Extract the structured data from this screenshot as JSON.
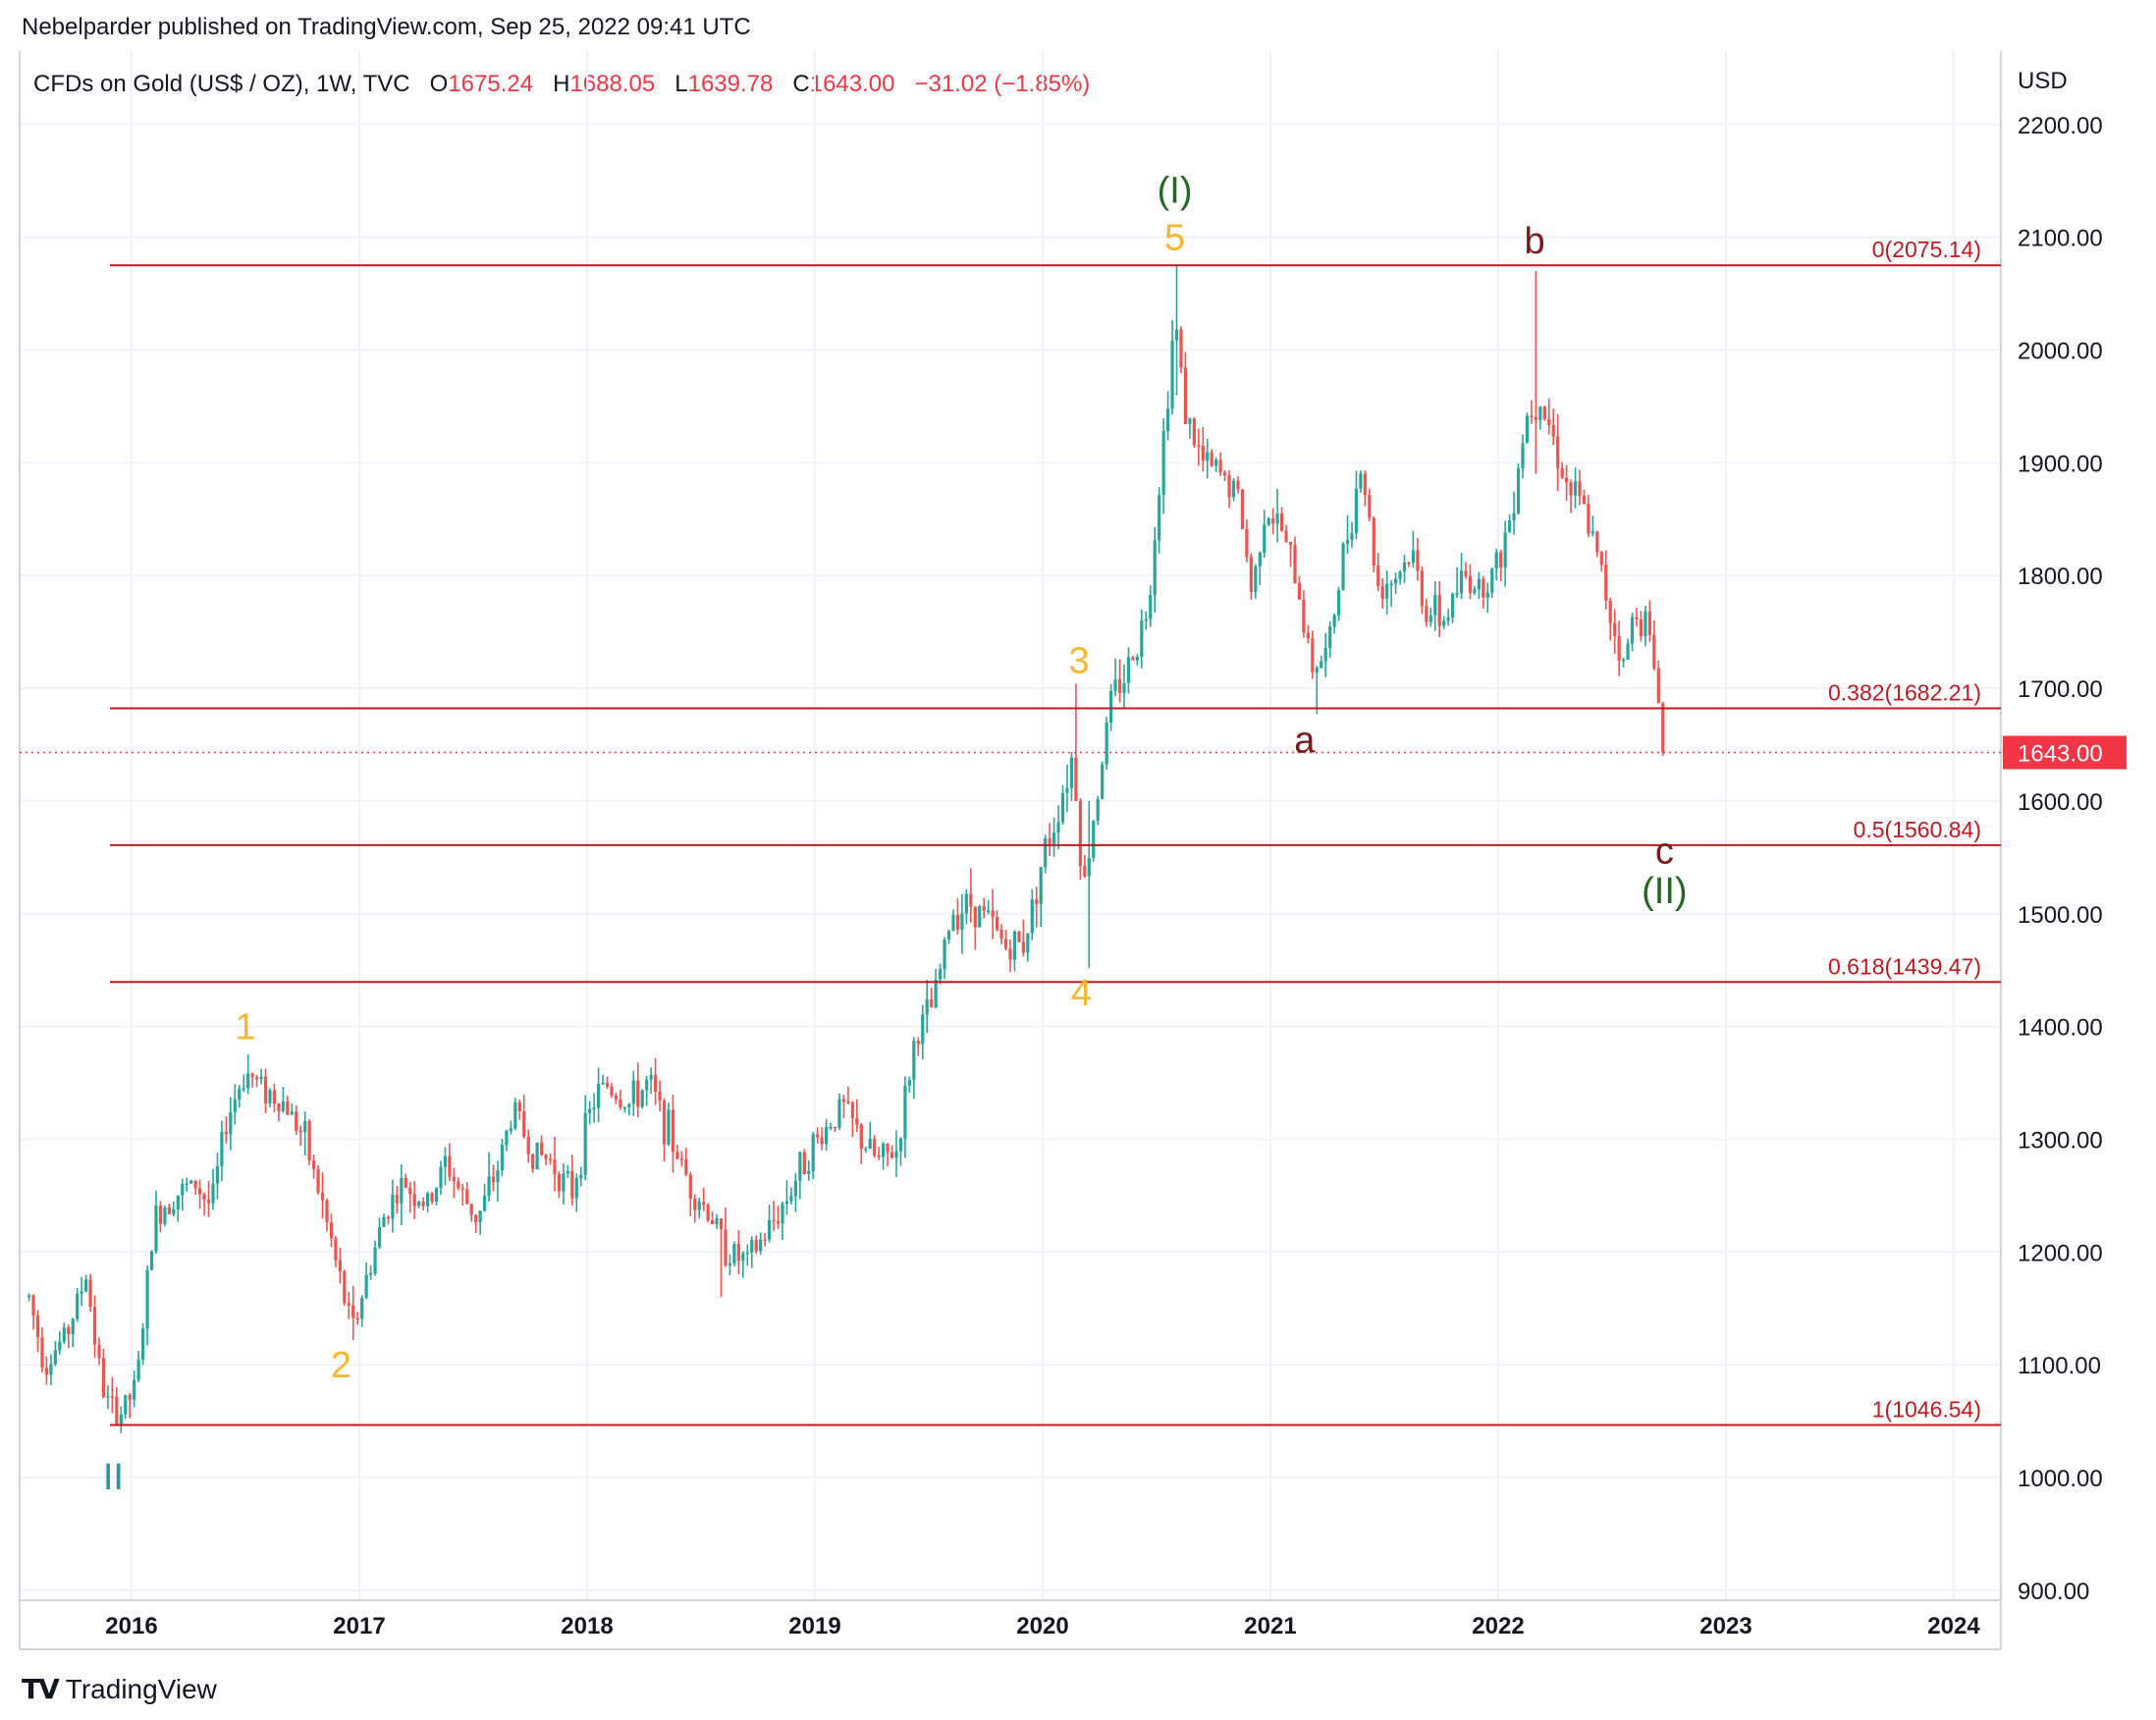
{
  "header": "Nebelparder published on TradingView.com, Sep 25, 2022 09:41 UTC",
  "legend": {
    "symbol": "CFDs on Gold (US$ / OZ), 1W, TVC",
    "o_label": "O",
    "o": "1675.24",
    "h_label": "H",
    "h": "1688.05",
    "l_label": "L",
    "l": "1639.78",
    "c_label": "C",
    "c": "1643.00",
    "change": "−31.02 (−1.85%)"
  },
  "brand": "TradingView",
  "colors": {
    "up": "#26a69a",
    "down": "#ef5350",
    "fib": "#c2181f",
    "wave_minor": "#f7b731",
    "wave_primary": "#1e6b1e",
    "wave_corrective": "#7b1a1a",
    "wave_cycle": "#2596a8",
    "grid": "#f0f3fa",
    "price_tag": "#f23645"
  },
  "chart_data": {
    "type": "candlestick",
    "title": "CFDs on Gold (US$ / OZ), 1W, TVC",
    "currency": "USD",
    "x_range": [
      2015.55,
      2024.25
    ],
    "ylim": [
      900,
      2230
    ],
    "y_ticks": [
      "2200.00",
      "2100.00",
      "2000.00",
      "1900.00",
      "1800.00",
      "1700.00",
      "1600.00",
      "1500.00",
      "1400.00",
      "1300.00",
      "1200.00",
      "1100.00",
      "1000.00",
      "900.00"
    ],
    "x_ticks": [
      "2016",
      "2017",
      "2018",
      "2019",
      "2020",
      "2021",
      "2022",
      "2023",
      "2024"
    ],
    "last_price": "1643.00",
    "fib_levels": [
      {
        "label": "0(2075.14)",
        "value": 2075.14
      },
      {
        "label": "0.382(1682.21)",
        "value": 1682.21
      },
      {
        "label": "0.5(1560.84)",
        "value": 1560.84
      },
      {
        "label": "0.618(1439.47)",
        "value": 1439.47
      },
      {
        "label": "1(1046.54)",
        "value": 1046.54
      }
    ],
    "price_path": [
      [
        2015.55,
        1160
      ],
      [
        2015.62,
        1100
      ],
      [
        2015.72,
        1130
      ],
      [
        2015.8,
        1180
      ],
      [
        2015.87,
        1080
      ],
      [
        2015.93,
        1050
      ],
      [
        2016.02,
        1080
      ],
      [
        2016.1,
        1230
      ],
      [
        2016.18,
        1250
      ],
      [
        2016.28,
        1260
      ],
      [
        2016.35,
        1240
      ],
      [
        2016.42,
        1320
      ],
      [
        2016.5,
        1360
      ],
      [
        2016.58,
        1345
      ],
      [
        2016.68,
        1330
      ],
      [
        2016.76,
        1300
      ],
      [
        2016.84,
        1240
      ],
      [
        2016.92,
        1170
      ],
      [
        2016.97,
        1130
      ],
      [
        2017.05,
        1190
      ],
      [
        2017.12,
        1240
      ],
      [
        2017.2,
        1260
      ],
      [
        2017.3,
        1240
      ],
      [
        2017.38,
        1280
      ],
      [
        2017.45,
        1250
      ],
      [
        2017.52,
        1230
      ],
      [
        2017.6,
        1270
      ],
      [
        2017.68,
        1330
      ],
      [
        2017.75,
        1290
      ],
      [
        2017.85,
        1280
      ],
      [
        2017.93,
        1250
      ],
      [
        2018.02,
        1330
      ],
      [
        2018.08,
        1350
      ],
      [
        2018.18,
        1330
      ],
      [
        2018.27,
        1350
      ],
      [
        2018.35,
        1310
      ],
      [
        2018.45,
        1260
      ],
      [
        2018.55,
        1230
      ],
      [
        2018.62,
        1200
      ],
      [
        2018.7,
        1190
      ],
      [
        2018.8,
        1220
      ],
      [
        2018.88,
        1250
      ],
      [
        2018.96,
        1285
      ],
      [
        2019.05,
        1310
      ],
      [
        2019.12,
        1330
      ],
      [
        2019.2,
        1300
      ],
      [
        2019.28,
        1280
      ],
      [
        2019.36,
        1290
      ],
      [
        2019.44,
        1390
      ],
      [
        2019.52,
        1420
      ],
      [
        2019.6,
        1500
      ],
      [
        2019.68,
        1510
      ],
      [
        2019.76,
        1495
      ],
      [
        2019.84,
        1470
      ],
      [
        2019.92,
        1475
      ],
      [
        2020.0,
        1550
      ],
      [
        2020.05,
        1580
      ],
      [
        2020.13,
        1640
      ],
      [
        2020.18,
        1520
      ],
      [
        2020.22,
        1580
      ],
      [
        2020.3,
        1690
      ],
      [
        2020.38,
        1720
      ],
      [
        2020.46,
        1770
      ],
      [
        2020.52,
        1900
      ],
      [
        2020.58,
        2030
      ],
      [
        2020.63,
        1940
      ],
      [
        2020.7,
        1900
      ],
      [
        2020.78,
        1890
      ],
      [
        2020.86,
        1870
      ],
      [
        2020.92,
        1780
      ],
      [
        2020.97,
        1860
      ],
      [
        2021.05,
        1840
      ],
      [
        2021.12,
        1790
      ],
      [
        2021.18,
        1720
      ],
      [
        2021.25,
        1730
      ],
      [
        2021.33,
        1830
      ],
      [
        2021.4,
        1900
      ],
      [
        2021.47,
        1790
      ],
      [
        2021.55,
        1800
      ],
      [
        2021.62,
        1820
      ],
      [
        2021.68,
        1770
      ],
      [
        2021.76,
        1760
      ],
      [
        2021.85,
        1800
      ],
      [
        2021.92,
        1790
      ],
      [
        2022.0,
        1810
      ],
      [
        2022.05,
        1850
      ],
      [
        2022.12,
        1940
      ],
      [
        2022.18,
        1960
      ],
      [
        2022.23,
        1930
      ],
      [
        2022.3,
        1880
      ],
      [
        2022.37,
        1860
      ],
      [
        2022.43,
        1820
      ],
      [
        2022.5,
        1760
      ],
      [
        2022.55,
        1720
      ],
      [
        2022.6,
        1770
      ],
      [
        2022.65,
        1760
      ],
      [
        2022.7,
        1700
      ],
      [
        2022.73,
        1643
      ]
    ],
    "key_candles": [
      {
        "x": 2015.94,
        "low": 1046.54,
        "high": 1080
      },
      {
        "x": 2016.51,
        "low": 1340,
        "high": 1375
      },
      {
        "x": 2016.97,
        "low": 1122,
        "high": 1170
      },
      {
        "x": 2018.58,
        "low": 1160,
        "high": 1220
      },
      {
        "x": 2020.15,
        "low": 1600,
        "high": 1704
      },
      {
        "x": 2020.21,
        "low": 1452,
        "high": 1600
      },
      {
        "x": 2020.59,
        "low": 1960,
        "high": 2075.14
      },
      {
        "x": 2021.2,
        "low": 1677,
        "high": 1720
      },
      {
        "x": 2022.17,
        "low": 1890,
        "high": 2070
      },
      {
        "x": 2022.73,
        "low": 1639.78,
        "high": 1688.05
      }
    ],
    "annotations": [
      {
        "text": "1",
        "x": 2016.5,
        "y": 1380,
        "color": "wave_minor",
        "pos": "above"
      },
      {
        "text": "2",
        "x": 2016.92,
        "y": 1122,
        "color": "wave_minor",
        "pos": "below"
      },
      {
        "text": "3",
        "x": 2020.16,
        "y": 1705,
        "color": "wave_minor",
        "pos": "above"
      },
      {
        "text": "4",
        "x": 2020.17,
        "y": 1452,
        "color": "wave_minor",
        "pos": "below"
      },
      {
        "text": "5",
        "x": 2020.58,
        "y": 2080,
        "color": "wave_minor",
        "pos": "above"
      },
      {
        "text": "(I)",
        "x": 2020.58,
        "y": 2122,
        "color": "wave_primary",
        "pos": "above"
      },
      {
        "text": "a",
        "x": 2021.15,
        "y": 1676,
        "color": "wave_corrective",
        "pos": "below"
      },
      {
        "text": "b",
        "x": 2022.16,
        "y": 2077,
        "color": "wave_corrective",
        "pos": "above"
      },
      {
        "text": "c",
        "x": 2022.73,
        "y": 1555,
        "color": "wave_corrective",
        "pos": "center"
      },
      {
        "text": "(II)",
        "x": 2022.73,
        "y": 1520,
        "color": "wave_primary",
        "pos": "center"
      },
      {
        "text": "II",
        "x": 2015.92,
        "y": 1000,
        "color": "wave_cycle",
        "pos": "center"
      }
    ]
  }
}
